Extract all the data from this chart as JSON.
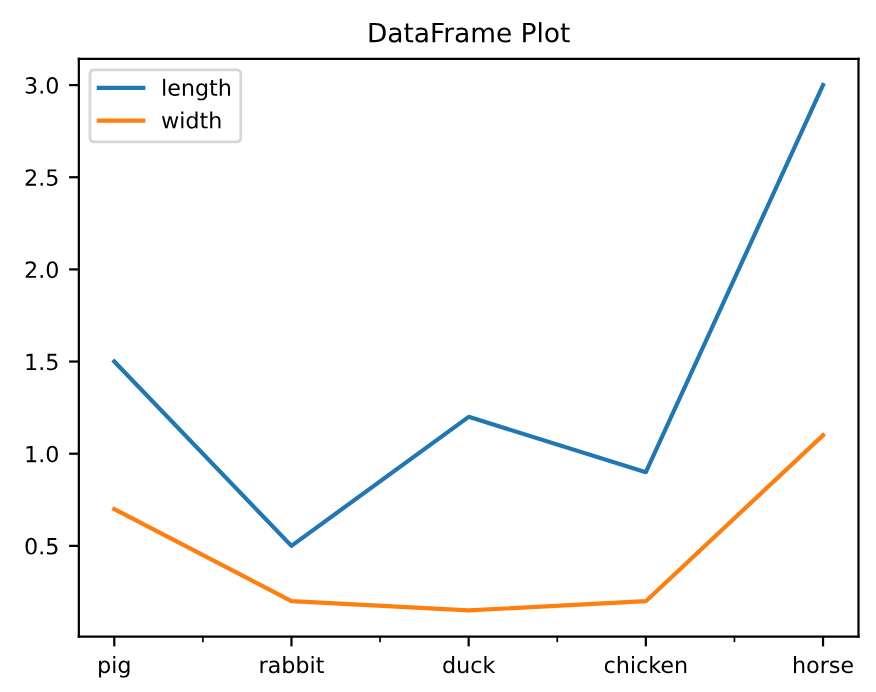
{
  "chart_data": {
    "type": "line",
    "title": "DataFrame Plot",
    "categories": [
      "pig",
      "rabbit",
      "duck",
      "chicken",
      "horse"
    ],
    "series": [
      {
        "name": "length",
        "color": "#1f77b4",
        "values": [
          1.5,
          0.5,
          1.2,
          0.9,
          3.0
        ]
      },
      {
        "name": "width",
        "color": "#ff7f0e",
        "values": [
          0.7,
          0.2,
          0.15,
          0.2,
          1.1
        ]
      }
    ],
    "ylim": [
      0.0075,
      3.1425
    ],
    "yticks": [
      0.5,
      {
        "value": 1,
        "label": "1.0"
      },
      1.5,
      {
        "value": 2,
        "label": "2.0"
      },
      2.5,
      {
        "value": 3,
        "label": "3.0"
      }
    ],
    "grid": false,
    "legend": "top left",
    "marker": "none",
    "line_style": "solid"
  }
}
